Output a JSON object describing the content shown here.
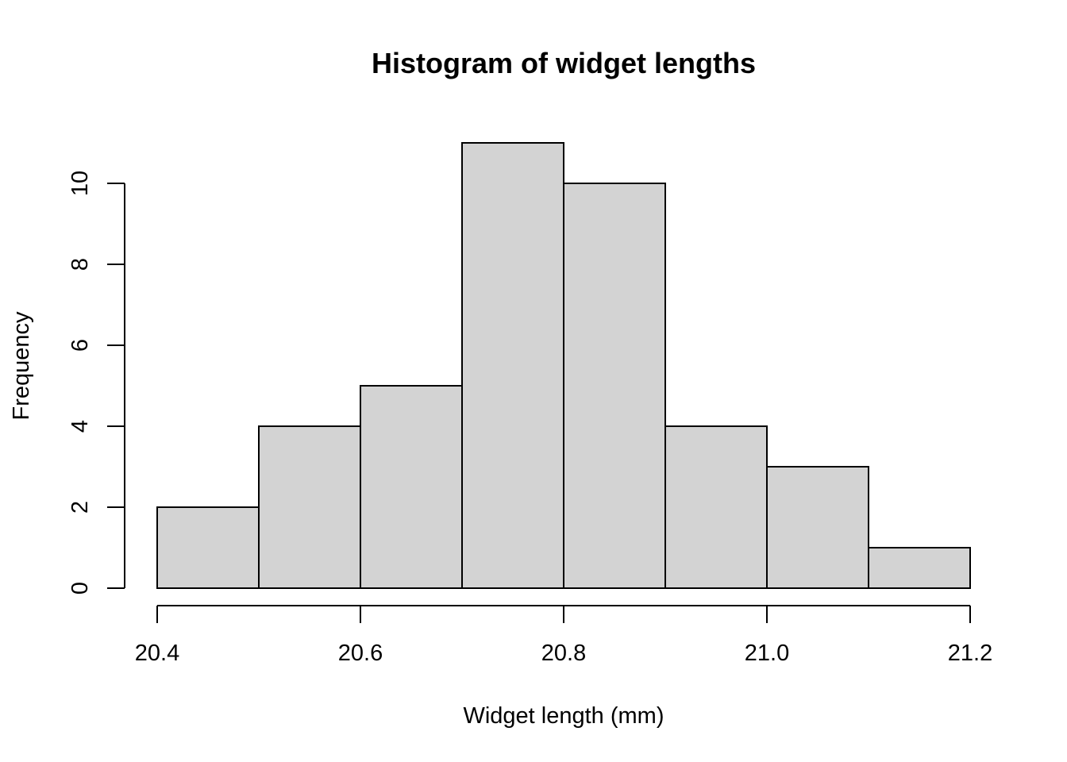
{
  "colors": {
    "bar_fill": "#d3d3d3",
    "bar_stroke": "#000000",
    "background": "#ffffff"
  },
  "chart_data": {
    "type": "bar",
    "title": "Histogram of widget lengths",
    "xlabel": "Widget length (mm)",
    "ylabel": "Frequency",
    "bins": [
      {
        "from": 20.4,
        "to": 20.5,
        "count": 2
      },
      {
        "from": 20.5,
        "to": 20.6,
        "count": 4
      },
      {
        "from": 20.6,
        "to": 20.7,
        "count": 5
      },
      {
        "from": 20.7,
        "to": 20.8,
        "count": 11
      },
      {
        "from": 20.8,
        "to": 20.9,
        "count": 10
      },
      {
        "from": 20.9,
        "to": 21.0,
        "count": 4
      },
      {
        "from": 21.0,
        "to": 21.1,
        "count": 3
      },
      {
        "from": 21.1,
        "to": 21.2,
        "count": 1
      }
    ],
    "xlim": [
      20.4,
      21.2
    ],
    "ylim": [
      0,
      11
    ],
    "x_ticks": [
      20.4,
      20.6,
      20.8,
      21.0,
      21.2
    ],
    "x_tick_labels": [
      "20.4",
      "20.6",
      "20.8",
      "21.0",
      "21.2"
    ],
    "y_ticks": [
      0,
      2,
      4,
      6,
      8,
      10
    ],
    "y_tick_labels": [
      "0",
      "2",
      "4",
      "6",
      "8",
      "10"
    ],
    "grid": false,
    "legend": "none"
  }
}
